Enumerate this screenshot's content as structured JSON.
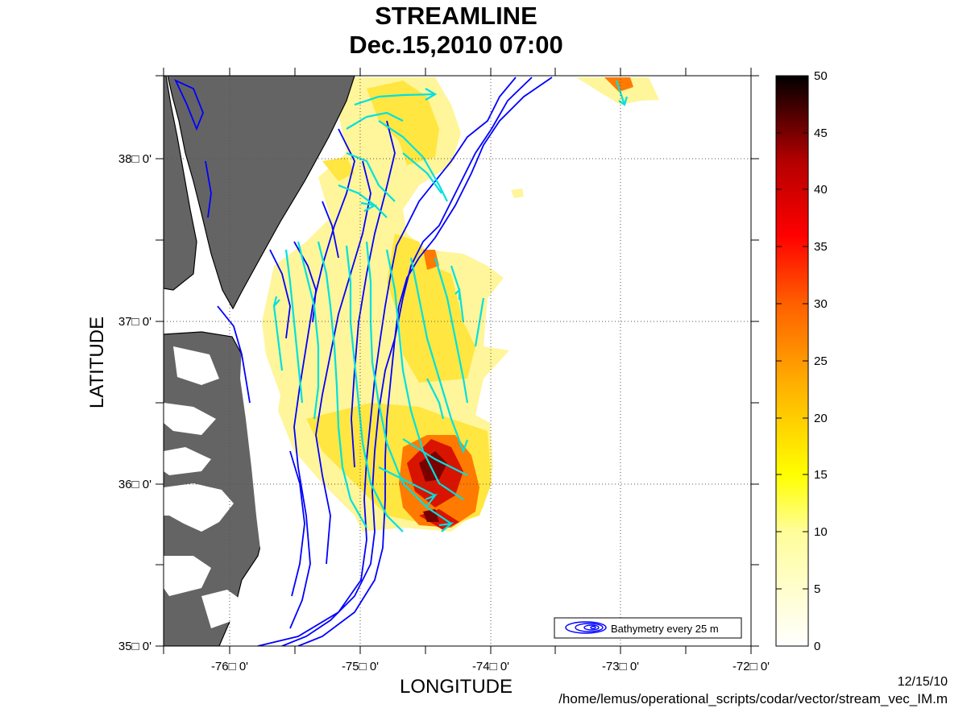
{
  "title": {
    "line1": "STREAMLINE",
    "line2": "Dec.15,2010 07:00"
  },
  "axes": {
    "xlabel": "LONGITUDE",
    "ylabel": "LATITUDE",
    "x_ticks": [
      "-76□ 0'",
      "-75□ 0'",
      "-74□ 0'",
      "-73□ 0'",
      "-72□ 0'"
    ],
    "y_ticks": [
      "38□ 0'",
      "37□ 0'",
      "36□ 0'",
      "35□ 0'"
    ],
    "x_range": [
      -76.5,
      -72
    ],
    "y_range": [
      35,
      38.5
    ],
    "grid": true
  },
  "legend": {
    "label": "Bathymetry every 25 m",
    "placement": "bottom-right"
  },
  "colorbar": {
    "ticks": [
      "0",
      "5",
      "10",
      "15",
      "20",
      "25",
      "30",
      "35",
      "40",
      "45",
      "50"
    ],
    "range": [
      0,
      50
    ]
  },
  "footer": {
    "date": "12/15/10",
    "path": "/home/lemus/operational_scripts/codar/vector/stream_vec_IM.m"
  },
  "colors": {
    "land": "#646464",
    "bathymetry": "#0000ff",
    "streamline": "#00e5e5"
  }
}
